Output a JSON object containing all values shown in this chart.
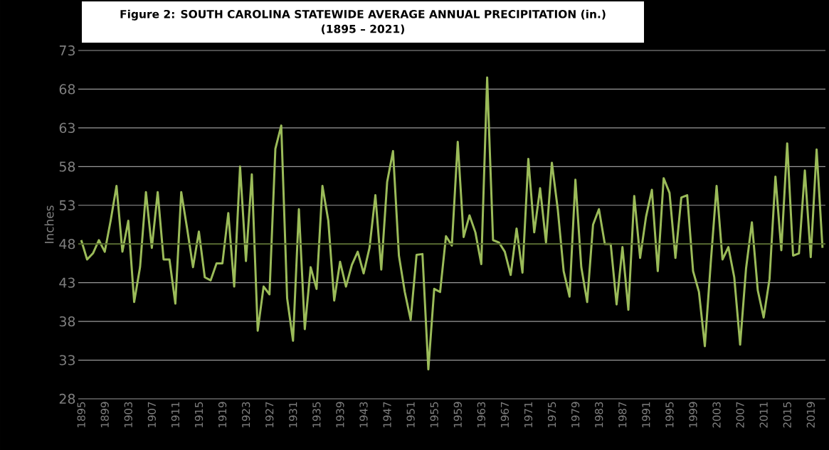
{
  "chart_data": {
    "type": "line",
    "title": "Figure 2: SOUTH CAROLINA STATEWIDE AVERAGE ANNUAL PRECIPITATION (in.)",
    "subtitle": "(1895 – 2021)",
    "ylabel": "Inches",
    "x": [
      1895,
      1896,
      1897,
      1898,
      1899,
      1900,
      1901,
      1902,
      1903,
      1904,
      1905,
      1906,
      1907,
      1908,
      1909,
      1910,
      1911,
      1912,
      1913,
      1914,
      1915,
      1916,
      1917,
      1918,
      1919,
      1920,
      1921,
      1922,
      1923,
      1924,
      1925,
      1926,
      1927,
      1928,
      1929,
      1930,
      1931,
      1932,
      1933,
      1934,
      1935,
      1936,
      1937,
      1938,
      1939,
      1940,
      1941,
      1942,
      1943,
      1944,
      1945,
      1946,
      1947,
      1948,
      1949,
      1950,
      1951,
      1952,
      1953,
      1954,
      1955,
      1956,
      1957,
      1958,
      1959,
      1960,
      1961,
      1962,
      1963,
      1964,
      1965,
      1966,
      1967,
      1968,
      1969,
      1970,
      1971,
      1972,
      1973,
      1974,
      1975,
      1976,
      1977,
      1978,
      1979,
      1980,
      1981,
      1982,
      1983,
      1984,
      1985,
      1986,
      1987,
      1988,
      1989,
      1990,
      1991,
      1992,
      1993,
      1994,
      1995,
      1996,
      1997,
      1998,
      1999,
      2000,
      2001,
      2002,
      2003,
      2004,
      2005,
      2006,
      2007,
      2008,
      2009,
      2010,
      2011,
      2012,
      2013,
      2014,
      2015,
      2016,
      2017,
      2018,
      2019,
      2020,
      2021
    ],
    "series": [
      {
        "color": "#9bbb59",
        "values": [
          48.5,
          46,
          46.8,
          48.5,
          47,
          51,
          55.5,
          47,
          51,
          40.5,
          45,
          54.7,
          47.5,
          54.7,
          46,
          46,
          40.3,
          54.7,
          50,
          45,
          49.6,
          43.7,
          43.3,
          45.5,
          45.5,
          52,
          42.5,
          58,
          45.8,
          57,
          36.8,
          42.5,
          41.5,
          60.3,
          63.3,
          41,
          35.5,
          52.5,
          37,
          45,
          42.2,
          55.5,
          51,
          40.7,
          45.7,
          42.5,
          45.3,
          47,
          44.2,
          47.5,
          54.3,
          44.7,
          56,
          60,
          46.5,
          41.8,
          38.2,
          46.6,
          46.7,
          31.8,
          42.2,
          41.8,
          49,
          47.8,
          61.2,
          48.9,
          51.7,
          49.5,
          45.4,
          69.5,
          48.5,
          48.2,
          47,
          44,
          50,
          44.3,
          59,
          49.5,
          55.2,
          48.2,
          58.5,
          52.5,
          44.5,
          41.2,
          56.3,
          45,
          40.5,
          50.5,
          52.5,
          48,
          48,
          40.2,
          47.6,
          39.5,
          54.2,
          46.2,
          51.5,
          55,
          44.5,
          56.5,
          54.6,
          46.2,
          54,
          54.3,
          44.5,
          41.8,
          34.8,
          45.5,
          55.5,
          46,
          47.6,
          43.7,
          35,
          44.8,
          50.8,
          42,
          38.5,
          43.5,
          56.7,
          47.2,
          61,
          46.5,
          46.8,
          57.5,
          46.3,
          60.2,
          47.5
        ]
      }
    ],
    "xlim": [
      1894.5,
      2021.5
    ],
    "xticks": [
      1895,
      1899,
      1903,
      1907,
      1911,
      1915,
      1919,
      1923,
      1927,
      1931,
      1935,
      1939,
      1943,
      1947,
      1951,
      1955,
      1959,
      1963,
      1967,
      1971,
      1975,
      1979,
      1983,
      1987,
      1991,
      1995,
      1999,
      2003,
      2007,
      2011,
      2015,
      2019
    ],
    "ylim": [
      28,
      73
    ],
    "yticks": [
      28,
      33,
      38,
      43,
      48,
      53,
      58,
      63,
      68,
      73
    ],
    "grid": "y",
    "ref_lines": [
      {
        "axis": "y",
        "value": 48,
        "color": "#4f6228"
      }
    ]
  }
}
